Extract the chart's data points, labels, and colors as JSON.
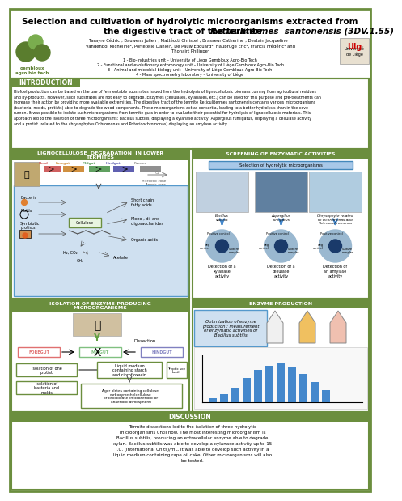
{
  "title_line1": "Selection and cultivation of hydrolytic microorganisms extracted from",
  "title_line2_normal": "the digestive tract of the termite ",
  "title_line2_italic": "Reticulitermes  santonensis (3DV.1.55)",
  "authors": "Tarayre Cédric¹, Bauwens Julien¹, Mattéotti Christel², Brasseur Catherine¹, Destain Jacqueline¹,\nVandenbol Micheline², Portetelle Daniel², De Pauw Edouard⁴, Haubruge Eric³, Francis Frédéric³ and\nThonairt Philippe¹",
  "affil1": "1 - Bio-Industries unit – University of Liège Gembloux Agro-Bio Tech",
  "affil2": "2 - Functional and evolutionary entomology unit – University of Liège Gembloux Agro-Bio Tech",
  "affil3": "3 - Animal and microbial biology unit – University of Liège Gembloux Agro-Bio Tech",
  "affil4": "4 - Mass spectrometry laboratory – University of Liège",
  "intro_title": "INTRODUCTION",
  "section1_title": "LIGNOCELLULOSE  DEGRADATION  IN LOWER\nTERMITES",
  "section2_title": "SCREENING OF ENZYMATIC ACTIVITIES",
  "section3_title": "ISOLATION OF ENZYME-PRODUCING\nMICROORGANISMS",
  "section4_title": "ENZYME PRODUCTION",
  "section5_title": "DISCUSSION",
  "enzyme_opt_text": "Optimization of enzyme\nproduction : measurement\nof enzymatic activities of\nBacillus subtilis",
  "discussion_text": "Termite dissections led to the isolation of three hydrolytic\nmicroorganisms until now. The most interesting microorganism is\nBacillus subtilis, producing an extracellular enzyme able to degrade\nxylan. Bacillus subtilis was able to develop a xylanase activity up to 15\nI.U. (International Units)/mL. It was able to develop such activity in a\nliquid medium containing rape oil cake. Other microorganisms will also\nbe tested.",
  "intro_body": "Biofuel production can be based on the use of fermentable substrates issued from the hydrolysis of lignocellulosic biomass coming from agricultural residues\nand by-products. However, such substrates are not easy to degrade. Enzymes (cellulases, xylanases, etc.) can be used for this purpose and pre-treatments can\nincrease their action by providing more available extremities. The digestive tract of the termite Reticulitermes santonensis contains various microorganisms\n(bacteria, molds, protists) able to degrade the wood components. These microorganisms act as consortia, leading to a better hydrolysis than in the cove-\nrumen. It was possible to isolate such microorganisms from termite guts in order to evaluate their potential for hydrolysis of lignocellulosic materials. This\napproach led to the isolation of three microorganisms: Bacillus subtilis, displaying a xylanase activity, Aspergillus fumigatus, displaying a cellulase activity\nand a protist (related to the chrysophytes Ochromonas and Poterioochromonas) displaying an amylase activity.",
  "green": "#6b8e3e",
  "header_green": "#6b8e3e",
  "white": "#ffffff",
  "light_blue": "#cfe0f0",
  "sel_box_color": "#a8c8e8",
  "enzyme_box_color": "#cfe0f0"
}
